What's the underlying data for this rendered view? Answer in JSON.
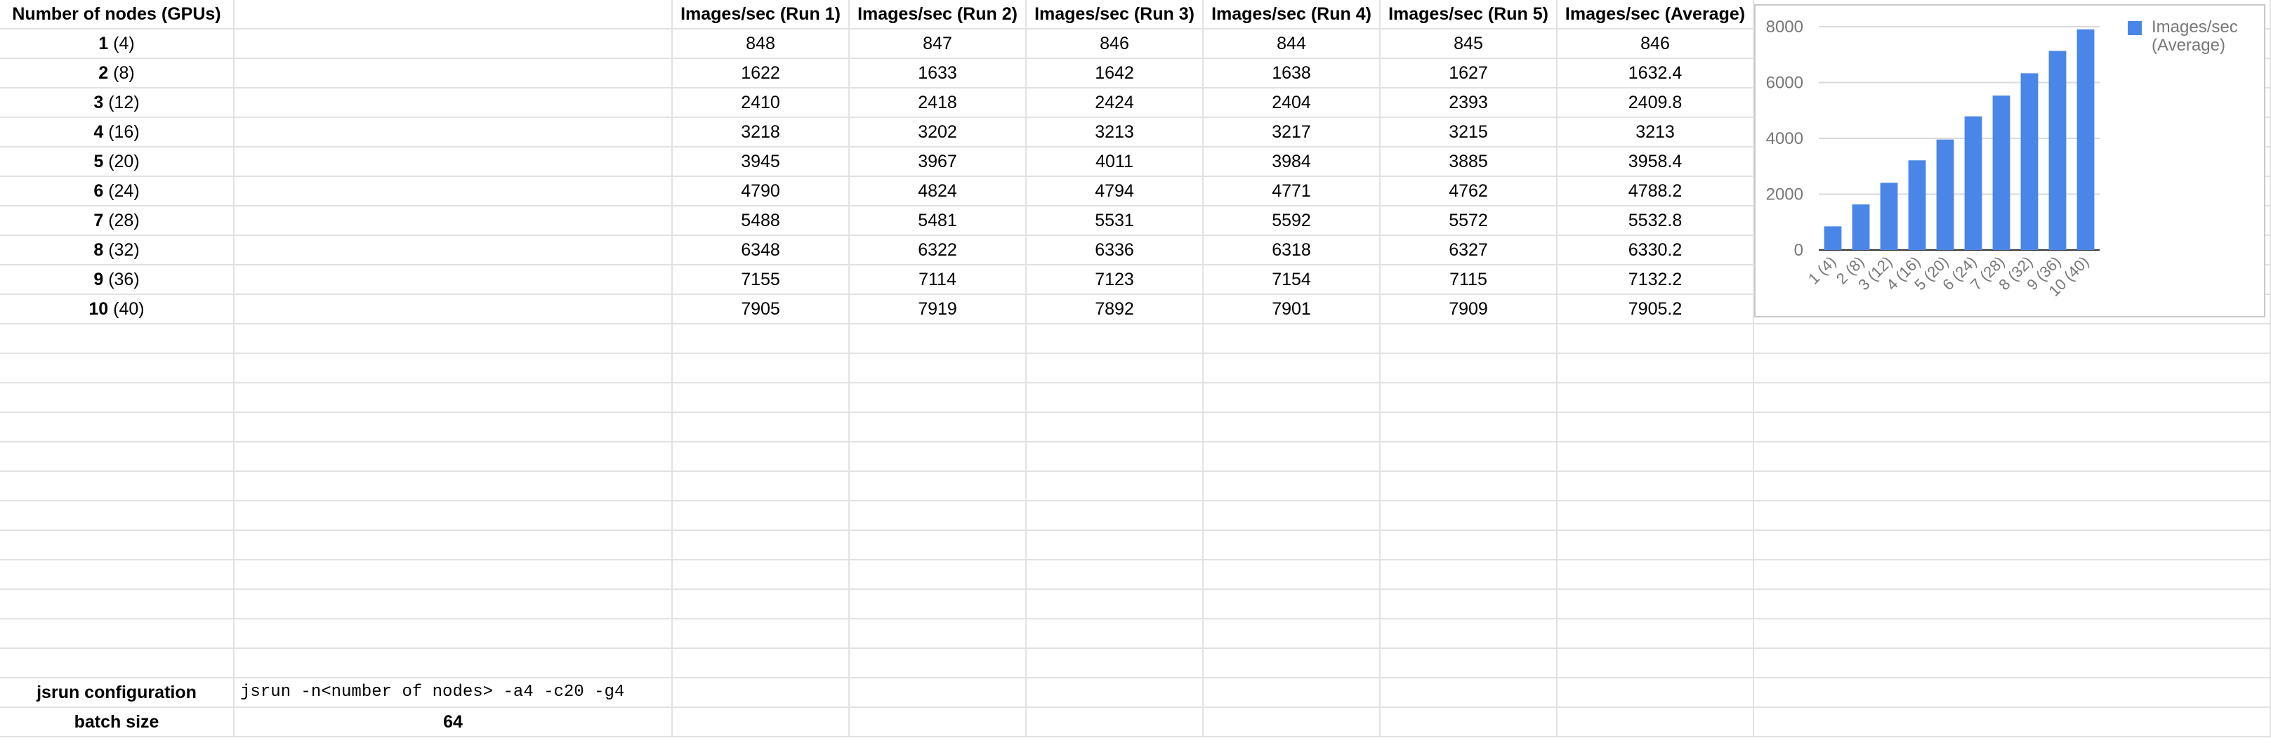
{
  "table": {
    "headers": [
      "Number of nodes (GPUs)",
      "",
      "Images/sec (Run 1)",
      "Images/sec (Run 2)",
      "Images/sec (Run 3)",
      "Images/sec (Run 4)",
      "Images/sec (Run 5)",
      "Images/sec (Average)"
    ],
    "rows": [
      {
        "nodes": "1",
        "gpus": "(4)",
        "run1": "848",
        "run2": "847",
        "run3": "846",
        "run4": "844",
        "run5": "845",
        "avg": "846"
      },
      {
        "nodes": "2",
        "gpus": "(8)",
        "run1": "1622",
        "run2": "1633",
        "run3": "1642",
        "run4": "1638",
        "run5": "1627",
        "avg": "1632.4"
      },
      {
        "nodes": "3",
        "gpus": "(12)",
        "run1": "2410",
        "run2": "2418",
        "run3": "2424",
        "run4": "2404",
        "run5": "2393",
        "avg": "2409.8"
      },
      {
        "nodes": "4",
        "gpus": "(16)",
        "run1": "3218",
        "run2": "3202",
        "run3": "3213",
        "run4": "3217",
        "run5": "3215",
        "avg": "3213"
      },
      {
        "nodes": "5",
        "gpus": "(20)",
        "run1": "3945",
        "run2": "3967",
        "run3": "4011",
        "run4": "3984",
        "run5": "3885",
        "avg": "3958.4"
      },
      {
        "nodes": "6",
        "gpus": "(24)",
        "run1": "4790",
        "run2": "4824",
        "run3": "4794",
        "run4": "4771",
        "run5": "4762",
        "avg": "4788.2"
      },
      {
        "nodes": "7",
        "gpus": "(28)",
        "run1": "5488",
        "run2": "5481",
        "run3": "5531",
        "run4": "5592",
        "run5": "5572",
        "avg": "5532.8"
      },
      {
        "nodes": "8",
        "gpus": "(32)",
        "run1": "6348",
        "run2": "6322",
        "run3": "6336",
        "run4": "6318",
        "run5": "6327",
        "avg": "6330.2"
      },
      {
        "nodes": "9",
        "gpus": "(36)",
        "run1": "7155",
        "run2": "7114",
        "run3": "7123",
        "run4": "7154",
        "run5": "7115",
        "avg": "7132.2"
      },
      {
        "nodes": "10",
        "gpus": "(40)",
        "run1": "7905",
        "run2": "7919",
        "run3": "7892",
        "run4": "7901",
        "run5": "7909",
        "avg": "7905.2"
      }
    ]
  },
  "config": {
    "jsrun_label": "jsrun configuration",
    "jsrun_value": "jsrun -n<number of nodes> -a4 -c20 -g4",
    "batch_label": "batch size",
    "batch_value": "64"
  },
  "chart_data": {
    "type": "bar",
    "categories": [
      "1 (4)",
      "2 (8)",
      "3 (12)",
      "4 (16)",
      "5 (20)",
      "6 (24)",
      "7 (28)",
      "8 (32)",
      "9 (36)",
      "10 (40)"
    ],
    "series": [
      {
        "name": "Images/sec (Average)",
        "values": [
          846,
          1632.4,
          2409.8,
          3213,
          3958.4,
          4788.2,
          5532.8,
          6330.2,
          7132.2,
          7905.2
        ]
      }
    ],
    "title": "",
    "xlabel": "",
    "ylabel": "",
    "ylim": [
      0,
      8000
    ],
    "yticks": [
      "0",
      "2000",
      "4000",
      "6000",
      "8000"
    ],
    "grid": true,
    "legend": "right",
    "colors": {
      "bar": "#4a86e8",
      "gridline": "#d9d9d9",
      "axis": "#333333",
      "tick_text": "#777777"
    }
  }
}
